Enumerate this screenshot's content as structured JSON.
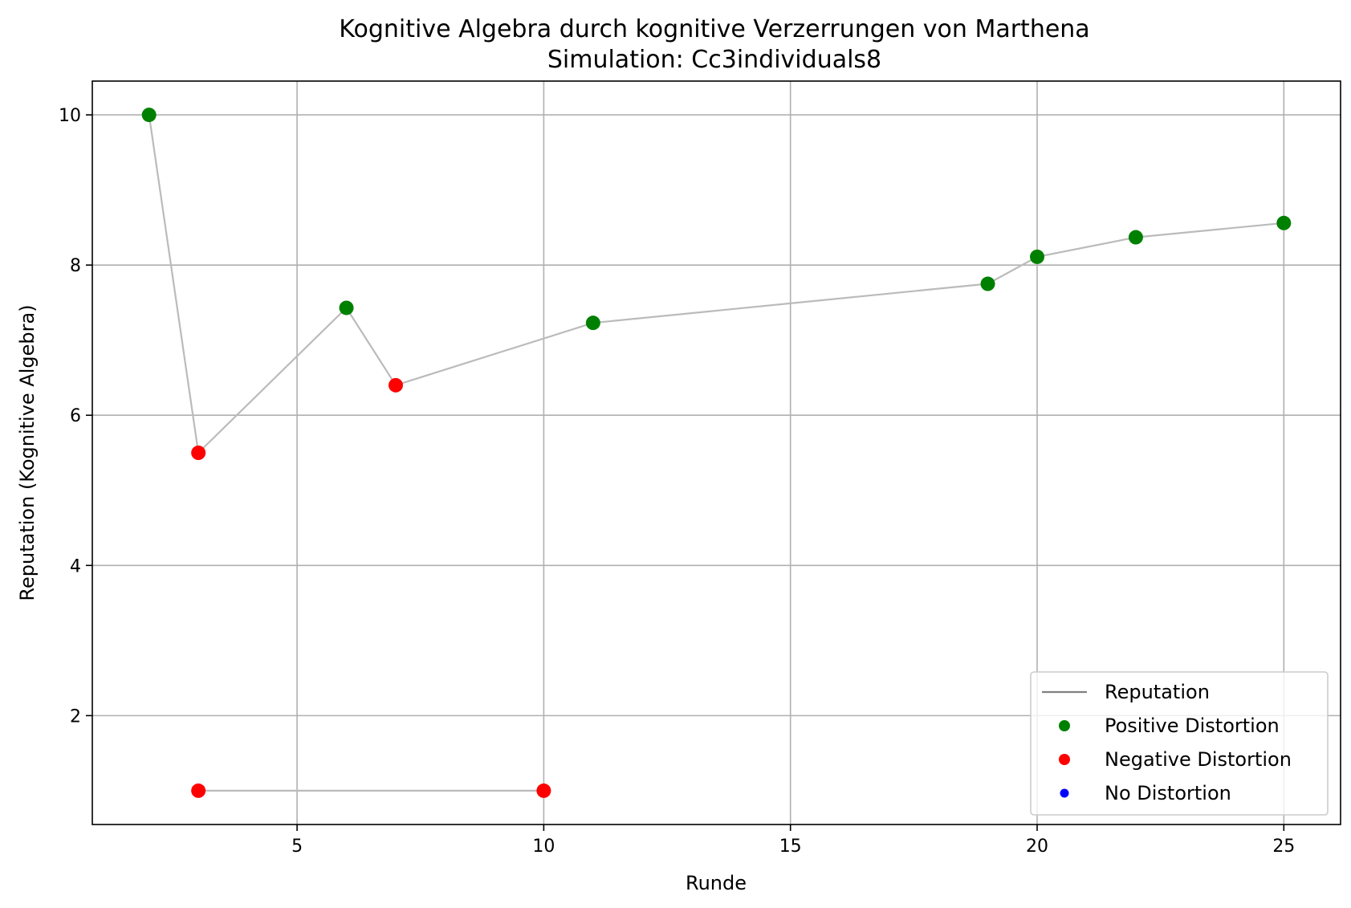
{
  "chart_data": {
    "type": "line",
    "title": "Kognitive Algebra durch kognitive Verzerrungen von Marthena",
    "subtitle": "Simulation: Cc3individuals8",
    "xlabel": "Runde",
    "ylabel": "Reputation (Kognitive Algebra)",
    "xlim": [
      0.85,
      26.15
    ],
    "ylim": [
      0.55,
      10.45
    ],
    "xticks": [
      5,
      10,
      15,
      20,
      25
    ],
    "yticks": [
      2,
      4,
      6,
      8,
      10
    ],
    "grid": true,
    "legend_position": "lower right",
    "line_color": "#bbbbbb",
    "series": [
      {
        "name": "Reputation",
        "points": [
          {
            "x": 2,
            "y": 10.0,
            "distortion": "positive"
          },
          {
            "x": 3,
            "y": 5.5,
            "distortion": "negative"
          },
          {
            "x": 6,
            "y": 7.43,
            "distortion": "positive"
          },
          {
            "x": 7,
            "y": 6.4,
            "distortion": "negative"
          },
          {
            "x": 11,
            "y": 7.23,
            "distortion": "positive"
          },
          {
            "x": 19,
            "y": 7.75,
            "distortion": "positive"
          },
          {
            "x": 20,
            "y": 8.11,
            "distortion": "positive"
          },
          {
            "x": 22,
            "y": 8.37,
            "distortion": "positive"
          },
          {
            "x": 25,
            "y": 8.56,
            "distortion": "positive"
          }
        ]
      },
      {
        "name": "",
        "points": [
          {
            "x": 3,
            "y": 1.0,
            "distortion": "negative"
          },
          {
            "x": 10,
            "y": 1.0,
            "distortion": "negative"
          }
        ]
      }
    ],
    "legend": [
      {
        "label": "Reputation",
        "kind": "line",
        "color": "#808080"
      },
      {
        "label": "Positive Distortion",
        "kind": "marker",
        "color": "#008000"
      },
      {
        "label": "Negative Distortion",
        "kind": "marker",
        "color": "#ff0000"
      },
      {
        "label": "No Distortion",
        "kind": "marker",
        "color": "#0000ff"
      }
    ],
    "colors": {
      "positive": "#008000",
      "negative": "#ff0000",
      "none": "#0000ff"
    }
  }
}
